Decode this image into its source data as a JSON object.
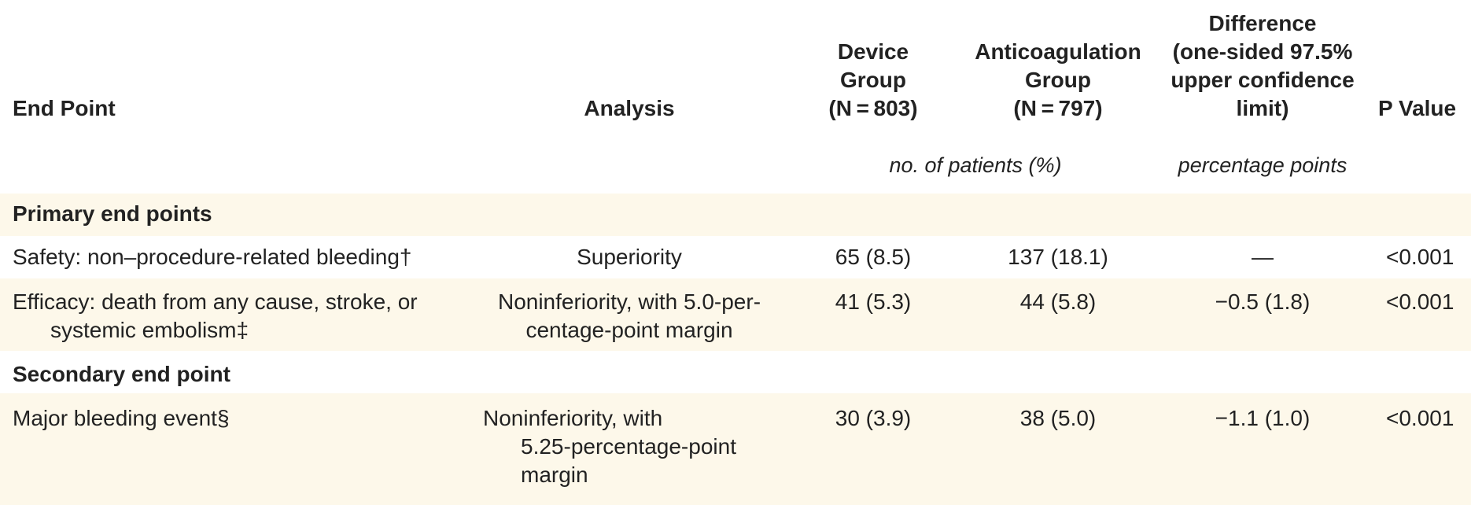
{
  "headers": {
    "endpoint": "End Point",
    "analysis": "Analysis",
    "device": [
      "Device",
      "Group",
      "(N = 803)"
    ],
    "anticoag": [
      "Anticoagulation",
      "Group",
      "(N = 797)"
    ],
    "difference": [
      "Difference",
      "(one-sided 97.5%",
      "upper confidence",
      "limit)"
    ],
    "pvalue": "P Value"
  },
  "units": {
    "counts": "no. of patients (%)",
    "difference": "percentage points"
  },
  "sections": [
    {
      "title": "Primary end points",
      "rows": [
        {
          "endpoint": [
            "Safety: non–procedure-related bleeding†"
          ],
          "analysis": [
            "Superiority"
          ],
          "device": "65 (8.5)",
          "anticoag": "137 (18.1)",
          "difference": "—",
          "pvalue": "<0.001"
        },
        {
          "endpoint": [
            "Efficacy: death from any cause, stroke, or",
            "systemic embolism‡"
          ],
          "analysis": [
            "Noninferiority, with 5.0-per-",
            "centage-point margin"
          ],
          "device": "41 (5.3)",
          "anticoag": "44 (5.8)",
          "difference": "−0.5 (1.8)",
          "pvalue": "<0.001"
        }
      ]
    },
    {
      "title": "Secondary end point",
      "rows": [
        {
          "endpoint": [
            "Major bleeding event§"
          ],
          "analysis": [
            "Noninferiority, with",
            "5.25-percentage-point",
            "margin"
          ],
          "device": "30 (3.9)",
          "anticoag": "38 (5.0)",
          "difference": "−1.1 (1.0)",
          "pvalue": "<0.001"
        }
      ]
    }
  ],
  "colors": {
    "shade": "#fdf8ea",
    "text": "#222222"
  }
}
